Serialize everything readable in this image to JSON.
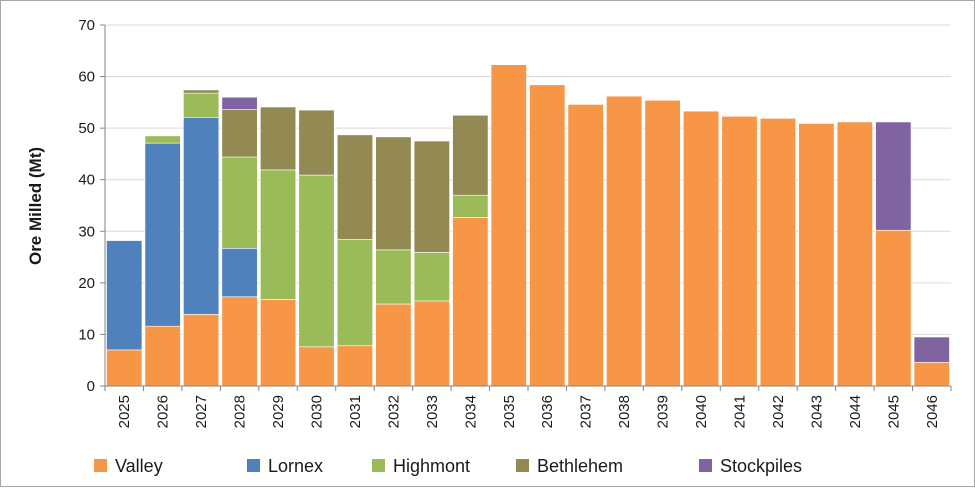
{
  "chart_data": {
    "type": "bar",
    "stacked": true,
    "title": "",
    "xlabel": "",
    "ylabel": "Ore Milled (Mt)",
    "ylim": [
      0,
      70
    ],
    "yticks": [
      0,
      10,
      20,
      30,
      40,
      50,
      60,
      70
    ],
    "grid": true,
    "legend_position": "bottom",
    "categories": [
      "2025",
      "2026",
      "2027",
      "2028",
      "2029",
      "2030",
      "2031",
      "2032",
      "2033",
      "2034",
      "2035",
      "2036",
      "2037",
      "2038",
      "2039",
      "2040",
      "2041",
      "2042",
      "2043",
      "2044",
      "2045",
      "2046"
    ],
    "series": [
      {
        "name": "Valley",
        "color": "#f79646",
        "values": [
          7.0,
          11.6,
          13.9,
          17.3,
          16.8,
          7.6,
          7.8,
          15.9,
          16.5,
          32.7,
          62.3,
          58.4,
          54.6,
          56.2,
          55.4,
          53.3,
          52.3,
          51.9,
          50.9,
          51.2,
          30.2,
          4.6
        ]
      },
      {
        "name": "Lornex",
        "color": "#4f81bd",
        "values": [
          21.2,
          35.5,
          38.2,
          9.4,
          0,
          0,
          0,
          0,
          0,
          0,
          0,
          0,
          0,
          0,
          0,
          0,
          0,
          0,
          0,
          0,
          0,
          0
        ]
      },
      {
        "name": "Highmont",
        "color": "#9bbb59",
        "values": [
          0,
          1.4,
          4.7,
          17.7,
          25.1,
          33.3,
          20.6,
          10.5,
          9.4,
          4.3,
          0,
          0,
          0,
          0,
          0,
          0,
          0,
          0,
          0,
          0,
          0,
          0
        ]
      },
      {
        "name": "Bethlehem",
        "color": "#938953",
        "values": [
          0,
          0,
          0.6,
          9.2,
          12.2,
          12.6,
          20.3,
          21.9,
          21.6,
          15.5,
          0,
          0,
          0,
          0,
          0,
          0,
          0,
          0,
          0,
          0,
          0,
          0
        ]
      },
      {
        "name": "Stockpiles",
        "color": "#8064a2",
        "values": [
          0,
          0,
          0,
          2.4,
          0,
          0,
          0,
          0,
          0,
          0,
          0,
          0,
          0,
          0,
          0,
          0,
          0,
          0,
          0,
          0,
          21.0,
          4.9
        ]
      }
    ]
  },
  "colors": {
    "grid": "#d9d9d9",
    "axis": "#868686",
    "bar_edge": "#ffffff"
  }
}
